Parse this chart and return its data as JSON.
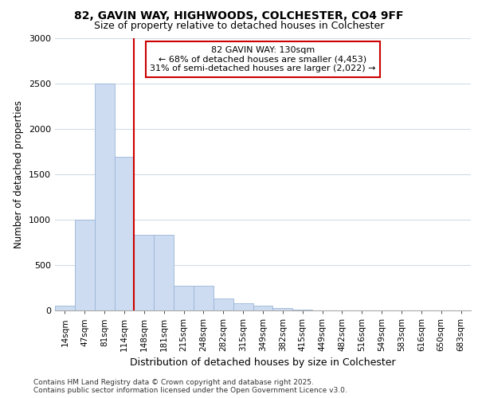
{
  "title1": "82, GAVIN WAY, HIGHWOODS, COLCHESTER, CO4 9FF",
  "title2": "Size of property relative to detached houses in Colchester",
  "xlabel": "Distribution of detached houses by size in Colchester",
  "ylabel": "Number of detached properties",
  "categories": [
    "14sqm",
    "47sqm",
    "81sqm",
    "114sqm",
    "148sqm",
    "181sqm",
    "215sqm",
    "248sqm",
    "282sqm",
    "315sqm",
    "349sqm",
    "382sqm",
    "415sqm",
    "449sqm",
    "482sqm",
    "516sqm",
    "549sqm",
    "583sqm",
    "616sqm",
    "650sqm",
    "683sqm"
  ],
  "values": [
    50,
    1000,
    2500,
    1690,
    830,
    830,
    270,
    270,
    130,
    75,
    50,
    30,
    5,
    3,
    2,
    1,
    0,
    0,
    0,
    0,
    0
  ],
  "bar_color": "#cddcf0",
  "bar_edgecolor": "#9ab5d8",
  "vline_color": "#cc0000",
  "annotation_text": "82 GAVIN WAY: 130sqm\n← 68% of detached houses are smaller (4,453)\n31% of semi-detached houses are larger (2,022) →",
  "annotation_box_color": "#cc0000",
  "ylim": [
    0,
    3000
  ],
  "yticks": [
    0,
    500,
    1000,
    1500,
    2000,
    2500,
    3000
  ],
  "footnote1": "Contains HM Land Registry data © Crown copyright and database right 2025.",
  "footnote2": "Contains public sector information licensed under the Open Government Licence v3.0.",
  "bg_color": "#ffffff",
  "grid_color": "#d0dce8",
  "title1_fontsize": 10,
  "title2_fontsize": 9
}
